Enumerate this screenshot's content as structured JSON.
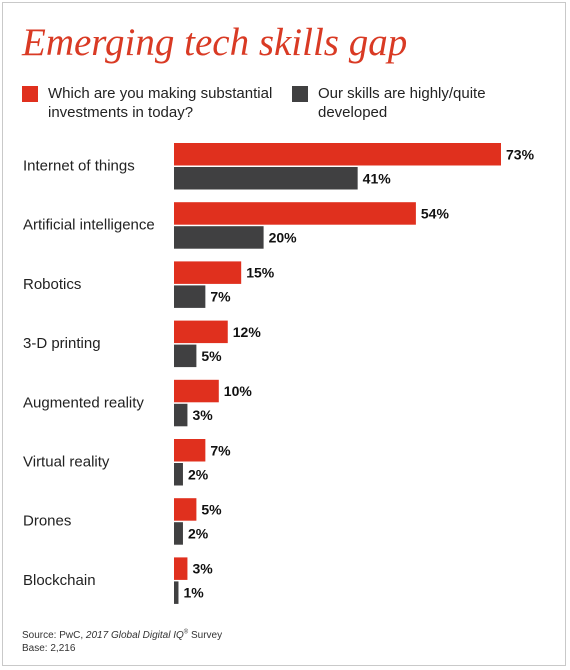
{
  "title": "Emerging tech skills gap",
  "colors": {
    "accent": "#d93a24",
    "dark": "#3d3d3d",
    "text": "#222222"
  },
  "legend": [
    {
      "label": "Which are you making substantial investments in today?",
      "color": "#e0301e"
    },
    {
      "label": "Our skills are highly/quite developed",
      "color": "#404041"
    }
  ],
  "chart_data": {
    "type": "bar",
    "orientation": "horizontal",
    "title": "Emerging tech skills gap",
    "categories": [
      "Internet of things",
      "Artificial intelligence",
      "Robotics",
      "3-D printing",
      "Augmented reality",
      "Virtual reality",
      "Drones",
      "Blockchain"
    ],
    "series": [
      {
        "name": "Which are you making substantial investments in today?",
        "color": "#e0301e",
        "values": [
          73,
          54,
          15,
          12,
          10,
          7,
          5,
          3
        ],
        "labels": [
          "73%",
          "54%",
          "15%",
          "12%",
          "10%",
          "7%",
          "5%",
          "3%"
        ]
      },
      {
        "name": "Our skills are highly/quite developed",
        "color": "#404041",
        "values": [
          41,
          20,
          7,
          5,
          3,
          2,
          2,
          1
        ],
        "labels": [
          "41%",
          "20%",
          "7%",
          "5%",
          "3%",
          "2%",
          "2%",
          "1%"
        ]
      }
    ],
    "xlim": [
      0,
      73
    ],
    "grid": false,
    "legend_position": "top"
  },
  "footer": {
    "source_prefix": "Source: PwC, ",
    "source_title": "2017 Global Digital IQ",
    "source_sup": "®",
    "source_suffix": " Survey",
    "base": "Base: 2,216"
  }
}
